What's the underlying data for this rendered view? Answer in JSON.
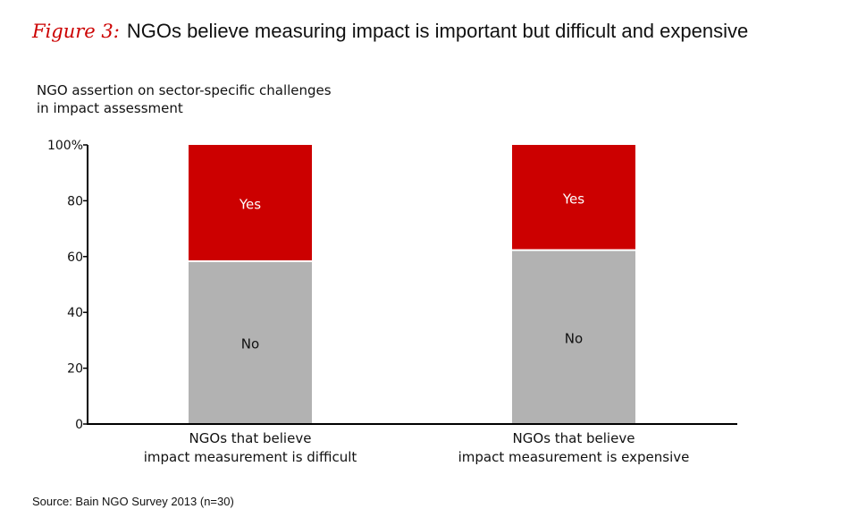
{
  "header": {
    "figure_label": "Figure 3:",
    "title": "NGOs believe measuring impact is important but difficult and expensive"
  },
  "subtitle_lines": [
    "NGO assertion on sector-specific challenges",
    "in impact assessment"
  ],
  "source": "Source: Bain NGO Survey 2013 (n=30)",
  "colors": {
    "yes": "#cc0000",
    "no": "#b2b2b2",
    "axis": "#000000",
    "accent": "#cc0000"
  },
  "chart_data": {
    "type": "bar",
    "stacked": true,
    "title": "NGOs believe measuring impact is important but difficult and expensive",
    "subtitle": "NGO assertion on sector-specific challenges in impact assessment",
    "xlabel": "",
    "ylabel": "",
    "ylim": [
      0,
      100
    ],
    "yticks": [
      0,
      20,
      40,
      60,
      80,
      100
    ],
    "ytick_labels": [
      "0",
      "20",
      "40",
      "60",
      "80",
      "100%"
    ],
    "grid": false,
    "legend": "none (inline segment labels)",
    "categories": [
      [
        "NGOs that believe",
        "impact measurement is difficult"
      ],
      [
        "NGOs that believe",
        "impact measurement is expensive"
      ]
    ],
    "series": [
      {
        "name": "No",
        "values": [
          58,
          62
        ],
        "color": "#b2b2b2",
        "label_color": "#111111"
      },
      {
        "name": "Yes",
        "values": [
          42,
          38
        ],
        "color": "#cc0000",
        "label_color": "#ffffff"
      }
    ],
    "source": "Source: Bain NGO Survey 2013 (n=30)"
  }
}
